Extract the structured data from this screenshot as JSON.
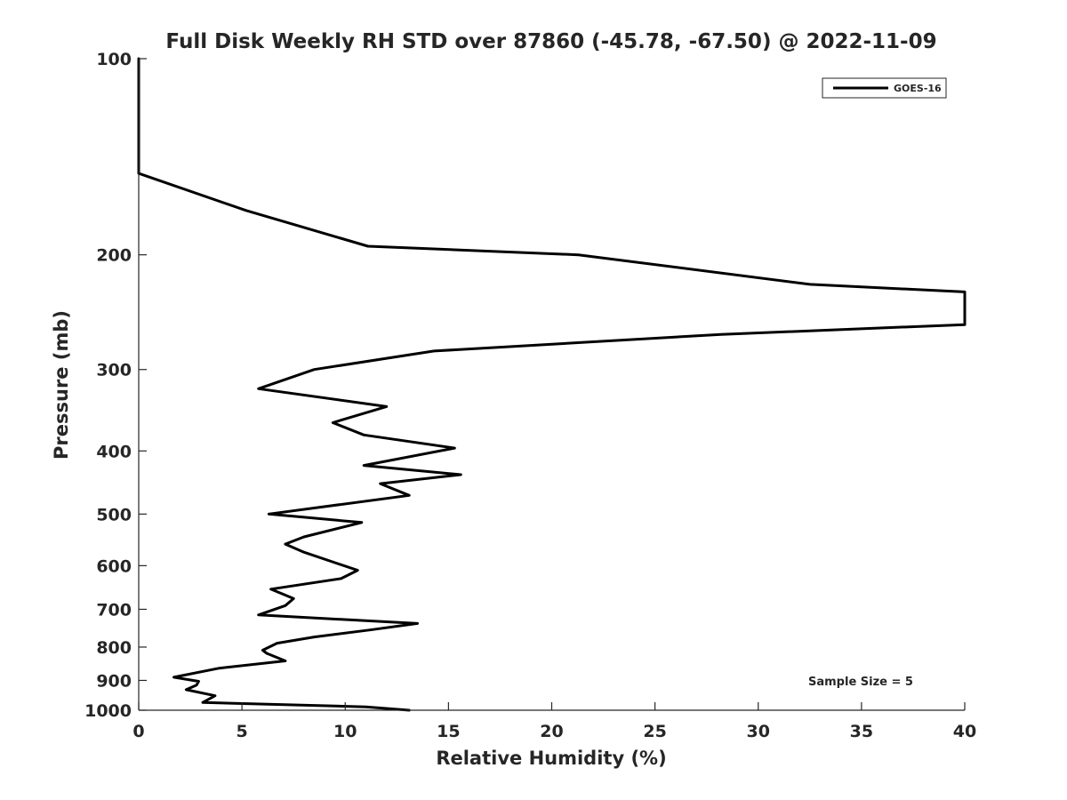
{
  "chart_data": {
    "type": "line",
    "title": "Full Disk Weekly RH STD over 87860 (-45.78, -67.50) @ 2022-11-09",
    "xlabel": "Relative Humidity (%)",
    "ylabel": "Pressure (mb)",
    "xlim": [
      0,
      40
    ],
    "ylim": [
      100,
      1000
    ],
    "yscale": "log",
    "xticks": [
      0,
      5,
      10,
      15,
      20,
      25,
      30,
      35,
      40
    ],
    "yticks": [
      100,
      200,
      300,
      400,
      500,
      600,
      700,
      800,
      900,
      1000
    ],
    "legend_position": "top-right",
    "annotation": "Sample Size = 5",
    "series": [
      {
        "name": "GOES-16",
        "color": "#000000",
        "x": [
          0,
          0,
          5.2,
          11.1,
          21.3,
          32.5,
          40,
          40,
          28.2,
          14.3,
          8.5,
          5.8,
          12.0,
          9.4,
          10.9,
          15.3,
          10.9,
          15.6,
          11.7,
          13.1,
          6.3,
          10.8,
          8.0,
          7.1,
          8.0,
          10.6,
          9.8,
          6.4,
          7.5,
          7.1,
          5.8,
          13.5,
          11.2,
          8.5,
          6.7,
          6.0,
          6.2,
          7.1,
          3.9,
          1.7,
          2.9,
          2.8,
          2.3,
          3.7,
          3.1,
          11.0,
          13.1
        ],
        "y": [
          100,
          150,
          171,
          194,
          200,
          222,
          228,
          256,
          265,
          281,
          300,
          321,
          342,
          362,
          378,
          396,
          421,
          435,
          449,
          468,
          500,
          515,
          542,
          556,
          572,
          610,
          628,
          652,
          674,
          691,
          714,
          736,
          753,
          772,
          789,
          809,
          818,
          840,
          862,
          890,
          903,
          915,
          930,
          950,
          973,
          988,
          1000
        ]
      }
    ]
  }
}
